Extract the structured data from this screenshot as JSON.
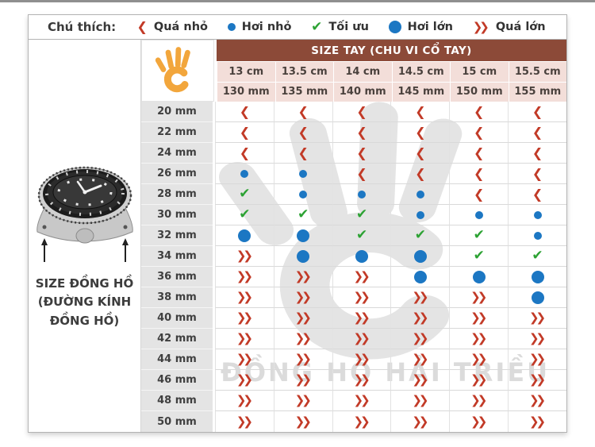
{
  "legend": {
    "label": "Chú thích:",
    "items": [
      {
        "code": "TS",
        "label": "Quá nhỏ"
      },
      {
        "code": "SS",
        "label": "Hơi nhỏ"
      },
      {
        "code": "OK",
        "label": "Tối ưu"
      },
      {
        "code": "SL",
        "label": "Hơi lớn"
      },
      {
        "code": "TL",
        "label": "Quá lớn"
      }
    ]
  },
  "left_panel": {
    "caption_lines": [
      "SIZE ĐỒNG HỒ",
      "(ĐƯỜNG KÍNH",
      "ĐỒNG HỒ)"
    ]
  },
  "table": {
    "header": "SIZE TAY (CHU VI CỔ TAY)",
    "wrist_cm": [
      "13 cm",
      "13.5 cm",
      "14 cm",
      "14.5 cm",
      "15 cm",
      "15.5 cm"
    ],
    "wrist_mm": [
      "130 mm",
      "135 mm",
      "140 mm",
      "145 mm",
      "150 mm",
      "155 mm"
    ],
    "rows": [
      {
        "label": "20 mm",
        "cells": [
          "TS",
          "TS",
          "TS",
          "TS",
          "TS",
          "TS"
        ]
      },
      {
        "label": "22 mm",
        "cells": [
          "TS",
          "TS",
          "TS",
          "TS",
          "TS",
          "TS"
        ]
      },
      {
        "label": "24 mm",
        "cells": [
          "TS",
          "TS",
          "TS",
          "TS",
          "TS",
          "TS"
        ]
      },
      {
        "label": "26 mm",
        "cells": [
          "SS",
          "SS",
          "TS",
          "TS",
          "TS",
          "TS"
        ]
      },
      {
        "label": "28 mm",
        "cells": [
          "OK",
          "SS",
          "SS",
          "SS",
          "TS",
          "TS"
        ]
      },
      {
        "label": "30 mm",
        "cells": [
          "OK",
          "OK",
          "OK",
          "SS",
          "SS",
          "SS"
        ]
      },
      {
        "label": "32 mm",
        "cells": [
          "SL",
          "SL",
          "OK",
          "OK",
          "OK",
          "SS"
        ]
      },
      {
        "label": "34 mm",
        "cells": [
          "TL",
          "SL",
          "SL",
          "SL",
          "OK",
          "OK"
        ]
      },
      {
        "label": "36 mm",
        "cells": [
          "TL",
          "TL",
          "TL",
          "SL",
          "SL",
          "SL"
        ]
      },
      {
        "label": "38 mm",
        "cells": [
          "TL",
          "TL",
          "TL",
          "TL",
          "TL",
          "SL"
        ]
      },
      {
        "label": "40 mm",
        "cells": [
          "TL",
          "TL",
          "TL",
          "TL",
          "TL",
          "TL"
        ]
      },
      {
        "label": "42 mm",
        "cells": [
          "TL",
          "TL",
          "TL",
          "TL",
          "TL",
          "TL"
        ]
      },
      {
        "label": "44 mm",
        "cells": [
          "TL",
          "TL",
          "TL",
          "TL",
          "TL",
          "TL"
        ]
      },
      {
        "label": "46 mm",
        "cells": [
          "TL",
          "TL",
          "TL",
          "TL",
          "TL",
          "TL"
        ]
      },
      {
        "label": "48 mm",
        "cells": [
          "TL",
          "TL",
          "TL",
          "TL",
          "TL",
          "TL"
        ]
      },
      {
        "label": "50 mm",
        "cells": [
          "TL",
          "TL",
          "TL",
          "TL",
          "TL",
          "TL"
        ]
      }
    ]
  },
  "watermark": {
    "text": "ĐỒNG HỒ HẢI TRIỀU"
  },
  "colors": {
    "header_bg": "#8C4A38",
    "header_cell_bg": "#F3DED9",
    "row_label_bg": "#E4E4E4",
    "red": "#C23A27",
    "blue": "#1C77C3",
    "green": "#2CA233",
    "orange": "#F2A63C",
    "watermark": "#D3D3D3"
  },
  "chart_data": {
    "type": "table",
    "title": "SIZE TAY (CHU VI CỔ TAY)",
    "row_header": "SIZE ĐỒNG HỒ (ĐƯỜNG KÍNH ĐỒNG HỒ)",
    "columns_wrist_cm": [
      13,
      13.5,
      14,
      14.5,
      15,
      15.5
    ],
    "columns_wrist_mm": [
      130,
      135,
      140,
      145,
      150,
      155
    ],
    "rows_watch_size_mm": [
      20,
      22,
      24,
      26,
      28,
      30,
      32,
      34,
      36,
      38,
      40,
      42,
      44,
      46,
      48,
      50
    ],
    "fit_codes": {
      "TS": "Quá nhỏ",
      "SS": "Hơi nhỏ",
      "OK": "Tối ưu",
      "SL": "Hơi lớn",
      "TL": "Quá lớn"
    },
    "matrix": [
      [
        "TS",
        "TS",
        "TS",
        "TS",
        "TS",
        "TS"
      ],
      [
        "TS",
        "TS",
        "TS",
        "TS",
        "TS",
        "TS"
      ],
      [
        "TS",
        "TS",
        "TS",
        "TS",
        "TS",
        "TS"
      ],
      [
        "SS",
        "SS",
        "TS",
        "TS",
        "TS",
        "TS"
      ],
      [
        "OK",
        "SS",
        "SS",
        "SS",
        "TS",
        "TS"
      ],
      [
        "OK",
        "OK",
        "OK",
        "SS",
        "SS",
        "SS"
      ],
      [
        "SL",
        "SL",
        "OK",
        "OK",
        "OK",
        "SS"
      ],
      [
        "TL",
        "SL",
        "SL",
        "SL",
        "OK",
        "OK"
      ],
      [
        "TL",
        "TL",
        "TL",
        "SL",
        "SL",
        "SL"
      ],
      [
        "TL",
        "TL",
        "TL",
        "TL",
        "TL",
        "SL"
      ],
      [
        "TL",
        "TL",
        "TL",
        "TL",
        "TL",
        "TL"
      ],
      [
        "TL",
        "TL",
        "TL",
        "TL",
        "TL",
        "TL"
      ],
      [
        "TL",
        "TL",
        "TL",
        "TL",
        "TL",
        "TL"
      ],
      [
        "TL",
        "TL",
        "TL",
        "TL",
        "TL",
        "TL"
      ],
      [
        "TL",
        "TL",
        "TL",
        "TL",
        "TL",
        "TL"
      ],
      [
        "TL",
        "TL",
        "TL",
        "TL",
        "TL",
        "TL"
      ]
    ]
  }
}
